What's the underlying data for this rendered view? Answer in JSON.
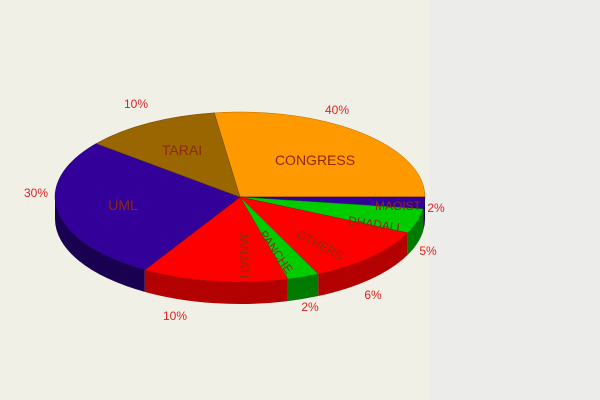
{
  "chart_data": {
    "type": "pie",
    "style": "3d",
    "title": "",
    "slices": [
      {
        "label": "CONGRESS",
        "value": 40,
        "pct_label": "40%",
        "color": "#ff9900",
        "side": "#b36b00"
      },
      {
        "label": "MAOIST",
        "value": 2,
        "pct_label": "2%",
        "color": "#330099",
        "side": "#1a0050"
      },
      {
        "label": "DHADALI",
        "value": 5,
        "pct_label": "5%",
        "color": "#00cc00",
        "side": "#007a00"
      },
      {
        "label": "OTHERS",
        "value": 6,
        "pct_label": "6%",
        "color": "#ff0000",
        "side": "#b30000"
      },
      {
        "label": "PANCHE",
        "value": 2,
        "pct_label": "2%",
        "color": "#00cc00",
        "side": "#007a00"
      },
      {
        "label": "JANJATI",
        "value": 10,
        "pct_label": "10%",
        "color": "#ff0000",
        "side": "#b30000"
      },
      {
        "label": "UML",
        "value": 30,
        "pct_label": "30%",
        "color": "#330099",
        "side": "#1a0050"
      },
      {
        "label": "TARAI",
        "value": 10,
        "pct_label": "10%",
        "color": "#996600",
        "side": "#6b4700"
      }
    ],
    "label_color": "#8b2a10",
    "pct_color": "#dd2222"
  }
}
